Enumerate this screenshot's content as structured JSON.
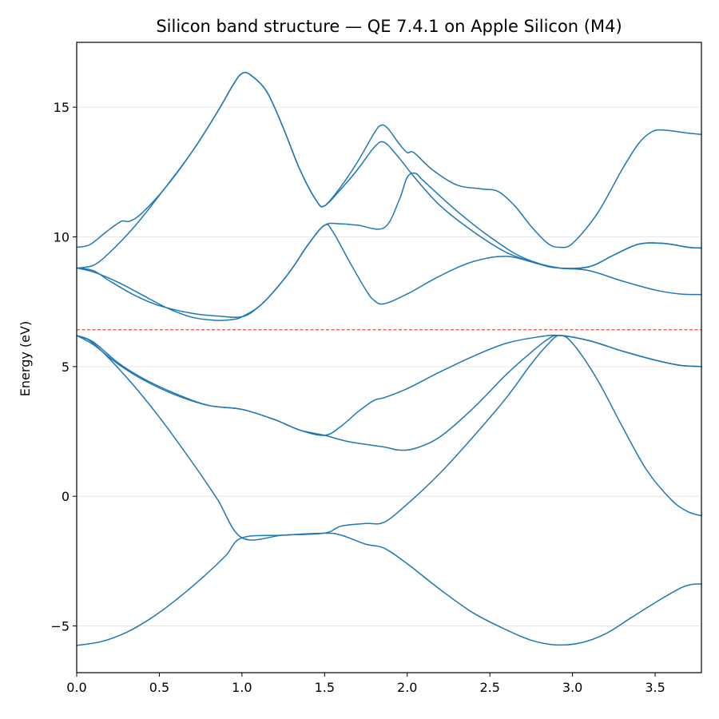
{
  "chart_data": {
    "type": "line",
    "title": "Silicon band structure — QE 7.4.1 on Apple Silicon (M4)",
    "xlabel": "",
    "ylabel": "Energy (eV)",
    "xlim": [
      0.0,
      3.78
    ],
    "ylim": [
      -6.8,
      17.5
    ],
    "x_ticks": [
      "0.0",
      "0.5",
      "1.0",
      "1.5",
      "2.0",
      "2.5",
      "3.0",
      "3.5"
    ],
    "y_ticks": [
      "−5",
      "0",
      "5",
      "10",
      "15"
    ],
    "grid": "horizontal",
    "line_color": "#1f77b4",
    "fermi_level": {
      "value": 6.42,
      "color": "#d62728",
      "style": "dashed"
    },
    "series": [
      {
        "points": [
          [
            0.0,
            -5.75
          ],
          [
            0.15,
            -5.6
          ],
          [
            0.3,
            -5.25
          ],
          [
            0.45,
            -4.7
          ],
          [
            0.6,
            -4.0
          ],
          [
            0.75,
            -3.2
          ],
          [
            0.9,
            -2.3
          ],
          [
            1.0,
            -1.6
          ],
          [
            1.25,
            -1.5
          ],
          [
            1.5,
            -1.42
          ],
          [
            1.6,
            -1.5
          ],
          [
            1.75,
            -1.85
          ],
          [
            1.86,
            -2.0
          ],
          [
            2.0,
            -2.6
          ],
          [
            2.2,
            -3.6
          ],
          [
            2.4,
            -4.5
          ],
          [
            2.6,
            -5.15
          ],
          [
            2.75,
            -5.55
          ],
          [
            2.9,
            -5.73
          ],
          [
            3.05,
            -5.65
          ],
          [
            3.2,
            -5.3
          ],
          [
            3.35,
            -4.7
          ],
          [
            3.5,
            -4.1
          ],
          [
            3.65,
            -3.55
          ],
          [
            3.72,
            -3.4
          ],
          [
            3.78,
            -3.38
          ]
        ]
      },
      {
        "points": [
          [
            0.0,
            6.2
          ],
          [
            0.1,
            5.9
          ],
          [
            0.3,
            4.6
          ],
          [
            0.5,
            3.05
          ],
          [
            0.7,
            1.3
          ],
          [
            0.85,
            -0.1
          ],
          [
            1.0,
            -1.6
          ],
          [
            1.25,
            -1.5
          ],
          [
            1.5,
            -1.42
          ],
          [
            1.6,
            -1.15
          ],
          [
            1.75,
            -1.05
          ],
          [
            1.86,
            -1.0
          ],
          [
            2.0,
            -0.3
          ],
          [
            2.2,
            0.9
          ],
          [
            2.4,
            2.3
          ],
          [
            2.6,
            3.8
          ],
          [
            2.75,
            5.1
          ],
          [
            2.85,
            5.85
          ],
          [
            2.92,
            6.2
          ],
          [
            3.0,
            5.9
          ],
          [
            3.15,
            4.5
          ],
          [
            3.3,
            2.7
          ],
          [
            3.45,
            1.0
          ],
          [
            3.6,
            -0.15
          ],
          [
            3.7,
            -0.6
          ],
          [
            3.78,
            -0.75
          ]
        ]
      },
      {
        "points": [
          [
            0.0,
            6.2
          ],
          [
            0.1,
            5.85
          ],
          [
            0.25,
            5.1
          ],
          [
            0.4,
            4.5
          ],
          [
            0.6,
            3.9
          ],
          [
            0.8,
            3.5
          ],
          [
            1.0,
            3.35
          ],
          [
            1.2,
            2.95
          ],
          [
            1.35,
            2.55
          ],
          [
            1.5,
            2.35
          ],
          [
            1.65,
            2.1
          ],
          [
            1.86,
            1.9
          ],
          [
            1.95,
            1.78
          ],
          [
            2.05,
            1.85
          ],
          [
            2.2,
            2.3
          ],
          [
            2.4,
            3.4
          ],
          [
            2.6,
            4.7
          ],
          [
            2.75,
            5.55
          ],
          [
            2.85,
            6.05
          ],
          [
            2.92,
            6.2
          ],
          [
            3.1,
            6.0
          ],
          [
            3.3,
            5.6
          ],
          [
            3.5,
            5.25
          ],
          [
            3.65,
            5.05
          ],
          [
            3.78,
            5.0
          ]
        ]
      },
      {
        "points": [
          [
            0.0,
            6.2
          ],
          [
            0.1,
            5.95
          ],
          [
            0.25,
            5.15
          ],
          [
            0.4,
            4.55
          ],
          [
            0.6,
            3.95
          ],
          [
            0.8,
            3.5
          ],
          [
            1.0,
            3.35
          ],
          [
            1.2,
            2.95
          ],
          [
            1.35,
            2.55
          ],
          [
            1.5,
            2.35
          ],
          [
            1.6,
            2.7
          ],
          [
            1.7,
            3.25
          ],
          [
            1.8,
            3.7
          ],
          [
            1.86,
            3.8
          ],
          [
            2.0,
            4.15
          ],
          [
            2.2,
            4.8
          ],
          [
            2.4,
            5.4
          ],
          [
            2.6,
            5.9
          ],
          [
            2.8,
            6.15
          ],
          [
            2.92,
            6.2
          ],
          [
            3.1,
            6.0
          ],
          [
            3.3,
            5.6
          ],
          [
            3.5,
            5.25
          ],
          [
            3.65,
            5.05
          ],
          [
            3.78,
            5.0
          ]
        ]
      },
      {
        "points": [
          [
            0.0,
            8.8
          ],
          [
            0.1,
            8.65
          ],
          [
            0.25,
            8.25
          ],
          [
            0.4,
            7.75
          ],
          [
            0.55,
            7.25
          ],
          [
            0.7,
            6.9
          ],
          [
            0.85,
            6.78
          ],
          [
            0.95,
            6.82
          ],
          [
            1.0,
            6.92
          ],
          [
            1.1,
            7.3
          ],
          [
            1.2,
            7.95
          ],
          [
            1.3,
            8.75
          ],
          [
            1.4,
            9.7
          ],
          [
            1.5,
            10.45
          ],
          [
            1.55,
            10.2
          ],
          [
            1.65,
            9.05
          ],
          [
            1.75,
            7.95
          ],
          [
            1.8,
            7.55
          ],
          [
            1.86,
            7.42
          ],
          [
            2.0,
            7.8
          ],
          [
            2.2,
            8.5
          ],
          [
            2.4,
            9.05
          ],
          [
            2.6,
            9.25
          ],
          [
            2.8,
            8.95
          ],
          [
            2.92,
            8.8
          ],
          [
            3.1,
            8.7
          ],
          [
            3.3,
            8.3
          ],
          [
            3.5,
            7.95
          ],
          [
            3.65,
            7.8
          ],
          [
            3.78,
            7.78
          ]
        ]
      },
      {
        "points": [
          [
            0.0,
            8.8
          ],
          [
            0.1,
            8.7
          ],
          [
            0.2,
            8.3
          ],
          [
            0.35,
            7.75
          ],
          [
            0.5,
            7.35
          ],
          [
            0.7,
            7.05
          ],
          [
            0.85,
            6.95
          ],
          [
            1.0,
            6.92
          ],
          [
            1.1,
            7.3
          ],
          [
            1.2,
            7.95
          ],
          [
            1.3,
            8.75
          ],
          [
            1.4,
            9.7
          ],
          [
            1.5,
            10.45
          ],
          [
            1.6,
            10.5
          ],
          [
            1.7,
            10.45
          ],
          [
            1.86,
            10.35
          ],
          [
            1.95,
            11.4
          ],
          [
            2.0,
            12.3
          ],
          [
            2.05,
            12.45
          ],
          [
            2.1,
            12.15
          ],
          [
            2.3,
            11.0
          ],
          [
            2.5,
            10.0
          ],
          [
            2.7,
            9.2
          ],
          [
            2.92,
            8.8
          ],
          [
            3.1,
            8.85
          ],
          [
            3.25,
            9.3
          ],
          [
            3.4,
            9.72
          ],
          [
            3.55,
            9.75
          ],
          [
            3.7,
            9.6
          ],
          [
            3.78,
            9.57
          ]
        ]
      },
      {
        "points": [
          [
            0.0,
            8.8
          ],
          [
            0.1,
            8.9
          ],
          [
            0.2,
            9.4
          ],
          [
            0.35,
            10.4
          ],
          [
            0.5,
            11.6
          ],
          [
            0.7,
            13.3
          ],
          [
            0.85,
            14.8
          ],
          [
            0.95,
            15.9
          ],
          [
            1.0,
            16.3
          ],
          [
            1.05,
            16.25
          ],
          [
            1.15,
            15.6
          ],
          [
            1.25,
            14.2
          ],
          [
            1.35,
            12.6
          ],
          [
            1.45,
            11.4
          ],
          [
            1.5,
            11.2
          ],
          [
            1.6,
            11.85
          ],
          [
            1.7,
            12.6
          ],
          [
            1.8,
            13.45
          ],
          [
            1.86,
            13.65
          ],
          [
            1.95,
            13.05
          ],
          [
            2.05,
            12.25
          ],
          [
            2.2,
            11.2
          ],
          [
            2.4,
            10.2
          ],
          [
            2.6,
            9.4
          ],
          [
            2.8,
            8.95
          ],
          [
            2.92,
            8.8
          ],
          [
            3.1,
            8.85
          ],
          [
            3.25,
            9.3
          ],
          [
            3.4,
            9.72
          ],
          [
            3.55,
            9.75
          ],
          [
            3.7,
            9.6
          ],
          [
            3.78,
            9.57
          ]
        ]
      },
      {
        "points": [
          [
            0.0,
            9.6
          ],
          [
            0.08,
            9.7
          ],
          [
            0.18,
            10.2
          ],
          [
            0.27,
            10.6
          ],
          [
            0.32,
            10.6
          ],
          [
            0.4,
            10.95
          ],
          [
            0.55,
            12.0
          ],
          [
            0.7,
            13.3
          ],
          [
            0.85,
            14.8
          ],
          [
            0.95,
            15.9
          ],
          [
            1.0,
            16.3
          ],
          [
            1.05,
            16.25
          ],
          [
            1.15,
            15.6
          ],
          [
            1.25,
            14.2
          ],
          [
            1.35,
            12.6
          ],
          [
            1.45,
            11.4
          ],
          [
            1.5,
            11.2
          ],
          [
            1.6,
            11.95
          ],
          [
            1.7,
            12.9
          ],
          [
            1.8,
            14.0
          ],
          [
            1.84,
            14.3
          ],
          [
            1.88,
            14.2
          ],
          [
            1.95,
            13.6
          ],
          [
            2.0,
            13.25
          ],
          [
            2.04,
            13.25
          ],
          [
            2.15,
            12.6
          ],
          [
            2.3,
            12.0
          ],
          [
            2.45,
            11.85
          ],
          [
            2.55,
            11.75
          ],
          [
            2.65,
            11.2
          ],
          [
            2.75,
            10.4
          ],
          [
            2.85,
            9.75
          ],
          [
            2.92,
            9.6
          ],
          [
            3.0,
            9.75
          ],
          [
            3.15,
            10.9
          ],
          [
            3.3,
            12.6
          ],
          [
            3.4,
            13.6
          ],
          [
            3.48,
            14.05
          ],
          [
            3.55,
            14.12
          ],
          [
            3.7,
            14.0
          ],
          [
            3.78,
            13.95
          ]
        ]
      }
    ]
  }
}
